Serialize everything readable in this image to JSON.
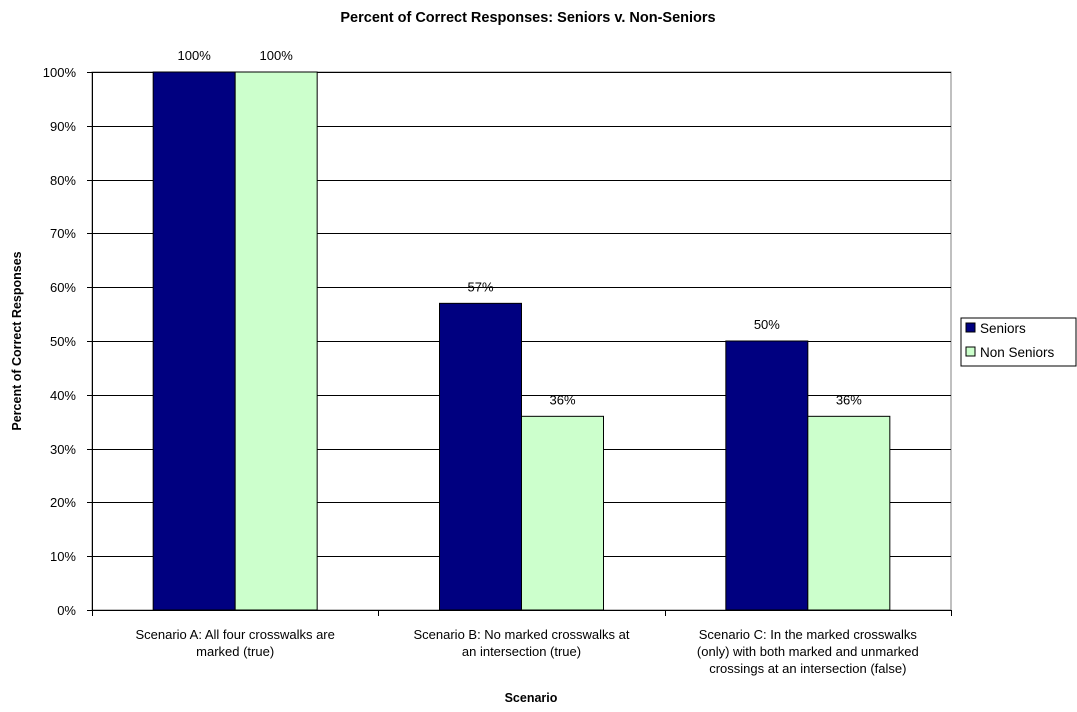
{
  "chart_data": {
    "type": "bar",
    "title": "Percent of Correct Responses: Seniors v. Non-Seniors",
    "xlabel": "Scenario",
    "ylabel": "Percent of Correct Responses",
    "ylim": [
      0,
      100
    ],
    "y_ticks": [
      "0%",
      "10%",
      "20%",
      "30%",
      "40%",
      "50%",
      "60%",
      "70%",
      "80%",
      "90%",
      "100%"
    ],
    "grid": true,
    "legend_position": "right",
    "categories": [
      "Scenario A: All four crosswalks are marked (true)",
      "Scenario B: No marked crosswalks at an intersection (true)",
      "Scenario C: In the marked crosswalks (only) with both marked and unmarked crossings at an intersection (false)"
    ],
    "category_lines": [
      [
        "Scenario A: All four crosswalks are",
        "marked (true)"
      ],
      [
        "Scenario B: No marked crosswalks at",
        "an intersection (true)"
      ],
      [
        "Scenario C: In the marked crosswalks",
        "(only) with both marked and unmarked",
        "crossings at an intersection (false)"
      ]
    ],
    "series": [
      {
        "name": "Seniors",
        "values": [
          100,
          57,
          50
        ],
        "labels": [
          "100%",
          "57%",
          "50%"
        ],
        "color": "#000080"
      },
      {
        "name": "Non Seniors",
        "values": [
          100,
          36,
          36
        ],
        "labels": [
          "100%",
          "36%",
          "36%"
        ],
        "color": "#CCFFCC"
      }
    ]
  }
}
